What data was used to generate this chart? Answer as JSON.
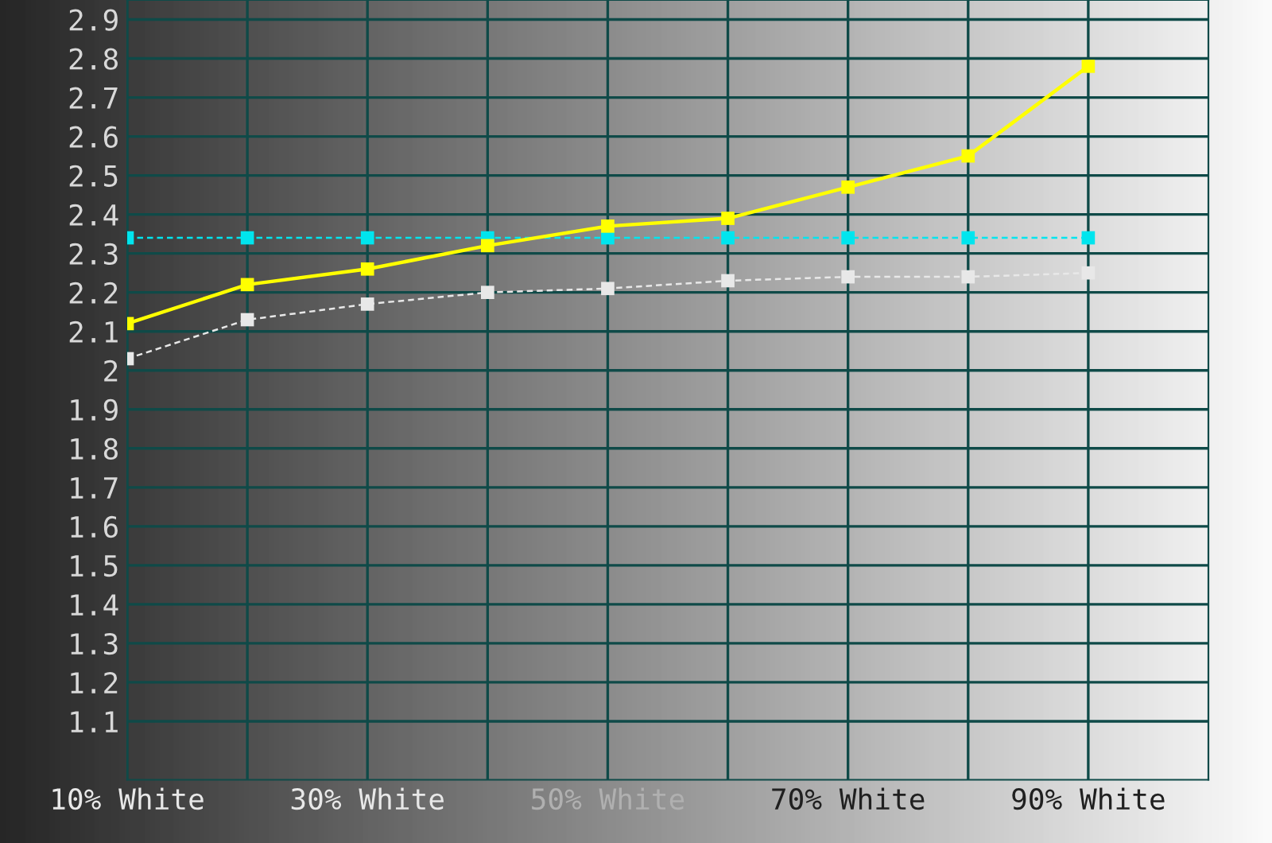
{
  "chart_data": {
    "type": "line",
    "x": [
      10,
      20,
      30,
      40,
      50,
      60,
      70,
      80,
      90
    ],
    "series": [
      {
        "color": "#00e5ee",
        "line_style": "dashed",
        "values": [
          2.34,
          2.34,
          2.34,
          2.34,
          2.34,
          2.34,
          2.34,
          2.34,
          2.34
        ]
      },
      {
        "color": "#ffff00",
        "line_style": "solid",
        "values": [
          2.12,
          2.22,
          2.26,
          2.32,
          2.37,
          2.39,
          2.47,
          2.55,
          2.78
        ]
      },
      {
        "color": "#e8e8e8",
        "line_style": "dashed",
        "values": [
          2.03,
          2.13,
          2.17,
          2.2,
          2.21,
          2.23,
          2.24,
          2.24,
          2.25
        ]
      }
    ],
    "marker": "square",
    "xlim": [
      10,
      100
    ],
    "xticks": [
      {
        "value": 10,
        "label": "10% White"
      },
      {
        "value": 20,
        "label": null
      },
      {
        "value": 30,
        "label": "30% White"
      },
      {
        "value": 40,
        "label": null
      },
      {
        "value": 50,
        "label": "50% White"
      },
      {
        "value": 60,
        "label": null
      },
      {
        "value": 70,
        "label": "70% White"
      },
      {
        "value": 80,
        "label": null
      },
      {
        "value": 90,
        "label": "90% White"
      }
    ],
    "ylim": [
      0.95,
      2.95
    ],
    "yticks": [
      1.1,
      1.2,
      1.3,
      1.4,
      1.5,
      1.6,
      1.7,
      1.8,
      1.9,
      2,
      2.1,
      2.2,
      2.3,
      2.4,
      2.5,
      2.6,
      2.7,
      2.8,
      2.9
    ],
    "grid": true
  }
}
